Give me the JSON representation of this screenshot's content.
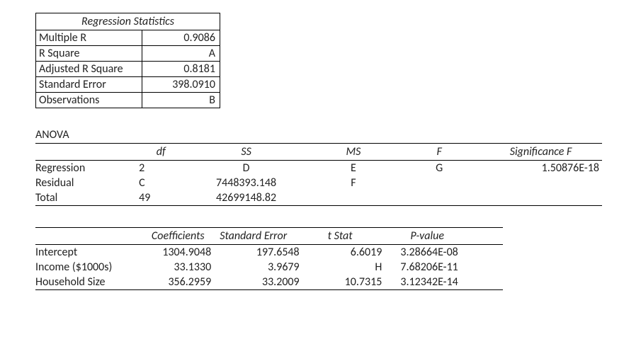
{
  "regstats": {
    "header": "Regression Statistics",
    "rows": [
      {
        "label": "Multiple R",
        "value": "0.9086"
      },
      {
        "label": "R Square",
        "value": "A"
      },
      {
        "label": "Adjusted R Square",
        "value": "0.8181"
      },
      {
        "label": "Standard Error",
        "value": "398.0910"
      },
      {
        "label": "Observations",
        "value": "B"
      }
    ]
  },
  "anova": {
    "title": "ANOVA",
    "headers": {
      "df": "df",
      "ss": "SS",
      "ms": "MS",
      "f": "F",
      "sigf": "Significance F"
    },
    "rows": [
      {
        "label": "Regression",
        "df": "2",
        "ss": "D",
        "ms": "E",
        "f": "G",
        "sigf": "1.50876E-18"
      },
      {
        "label": "Residual",
        "df": "C",
        "ss": "7448393.148",
        "ms": "F",
        "f": "",
        "sigf": ""
      },
      {
        "label": "Total",
        "df": "49",
        "ss": "42699148.82",
        "ms": "",
        "f": "",
        "sigf": ""
      }
    ]
  },
  "coef": {
    "headers": {
      "coef": "Coefficients",
      "se": "Standard Error",
      "tstat": "t Stat",
      "pval": "P-value"
    },
    "rows": [
      {
        "label": "Intercept",
        "coef": "1304.9048",
        "se": "197.6548",
        "tstat": "6.6019",
        "pval": "3.28664E-08"
      },
      {
        "label": "Income ($1000s)",
        "coef": "33.1330",
        "se": "3.9679",
        "tstat": "H",
        "pval": "7.68206E-11"
      },
      {
        "label": "Household Size",
        "coef": "356.2959",
        "se": "33.2009",
        "tstat": "10.7315",
        "pval": "3.12342E-14"
      }
    ]
  },
  "style": {
    "font_family": "Calibri",
    "font_size_pt": 12,
    "text_color": "#222222",
    "background_color": "#ffffff",
    "border_color": "#000000"
  }
}
